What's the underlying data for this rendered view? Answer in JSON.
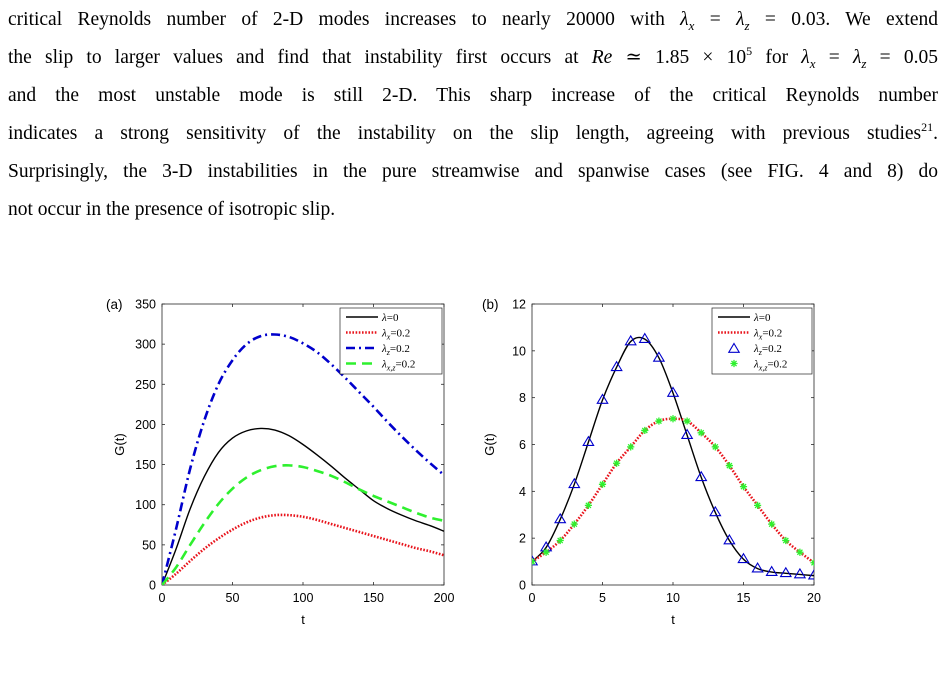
{
  "paragraph": {
    "line1": {
      "a": "critical Reynolds number of 2-D modes increases to nearly 20000 with ",
      "math": "λ",
      "sub_x": "x",
      "eq": " = ",
      "math2": "λ",
      "sub_z": "z",
      "b": " = 0.03. We extend"
    },
    "line2": {
      "a": "the slip to larger values and find that instability first occurs at ",
      "re": "Re",
      "b": " ≃ 1.85 × 10",
      "exp": "5",
      "c": " for ",
      "math": "λ",
      "sub_x": "x",
      "eq": " = ",
      "math2": "λ",
      "sub_z": "z",
      "d": " = 0.05"
    },
    "line3": "and the most unstable mode is still 2-D. This sharp increase of the critical Reynolds number",
    "line4": {
      "a": "indicates a strong sensitivity of the instability on the slip length, agreeing with previous studies",
      "ref": "21",
      "b": "."
    },
    "line5": "Surprisingly, the 3-D instabilities in the pure streamwise and spanwise cases (see FIG. 4 and 8) do",
    "line6": "not occur in the presence of isotropic slip."
  },
  "colors": {
    "black": "#000000",
    "red": "#e8141c",
    "blue": "#0000cc",
    "green": "#2ef02e"
  },
  "chart_data": [
    {
      "type": "line",
      "panel": "(a)",
      "xlabel": "t",
      "ylabel": "G(t)",
      "xlim": [
        0,
        200
      ],
      "ylim": [
        0,
        350
      ],
      "xticks": [
        0,
        50,
        100,
        150,
        200
      ],
      "yticks": [
        0,
        50,
        100,
        150,
        200,
        250,
        300,
        350
      ],
      "legend_position": "top-right",
      "series": [
        {
          "legend": "λ=0",
          "style": "solid",
          "color": "#000000",
          "x": [
            0,
            10,
            20,
            30,
            40,
            50,
            60,
            70,
            80,
            90,
            100,
            110,
            120,
            130,
            140,
            150,
            160,
            170,
            180,
            190,
            200
          ],
          "y": [
            0,
            45,
            95,
            135,
            165,
            183,
            192,
            195,
            193,
            186,
            175,
            162,
            148,
            133,
            119,
            105,
            95,
            87,
            80,
            74,
            67
          ]
        },
        {
          "legend": "λx=0.2",
          "style": "dotted",
          "color": "#e8141c",
          "x": [
            0,
            10,
            20,
            30,
            40,
            50,
            60,
            70,
            80,
            90,
            100,
            110,
            120,
            130,
            140,
            150,
            160,
            170,
            180,
            190,
            200
          ],
          "y": [
            0,
            14,
            30,
            45,
            58,
            69,
            78,
            84,
            87,
            87,
            85,
            81,
            76,
            71,
            66,
            61,
            56,
            51,
            46,
            42,
            37
          ]
        },
        {
          "legend": "λz=0.2",
          "style": "dashdot",
          "color": "#0000cc",
          "x": [
            0,
            10,
            20,
            30,
            40,
            50,
            60,
            70,
            80,
            90,
            100,
            110,
            120,
            130,
            140,
            150,
            160,
            170,
            180,
            190,
            200
          ],
          "y": [
            0,
            70,
            145,
            205,
            250,
            280,
            300,
            310,
            312,
            309,
            301,
            290,
            275,
            258,
            240,
            222,
            203,
            185,
            168,
            152,
            137
          ]
        },
        {
          "legend": "λx,z=0.2",
          "style": "dashed",
          "color": "#2ef02e",
          "x": [
            0,
            10,
            20,
            30,
            40,
            50,
            60,
            70,
            80,
            90,
            100,
            110,
            120,
            130,
            140,
            150,
            160,
            170,
            180,
            190,
            200
          ],
          "y": [
            0,
            22,
            50,
            77,
            101,
            120,
            134,
            143,
            148,
            149,
            147,
            142,
            136,
            128,
            119,
            111,
            104,
            97,
            90,
            84,
            80
          ]
        }
      ]
    },
    {
      "type": "line",
      "panel": "(b)",
      "xlabel": "t",
      "ylabel": "G(t)",
      "xlim": [
        0,
        20
      ],
      "ylim": [
        0,
        12
      ],
      "xticks": [
        0,
        5,
        10,
        15,
        20
      ],
      "yticks": [
        0,
        2,
        4,
        6,
        8,
        10,
        12
      ],
      "legend_position": "top-right",
      "series": [
        {
          "legend": "λ=0",
          "style": "solid",
          "color": "#000000",
          "x": [
            0,
            1,
            2,
            3,
            4,
            5,
            6,
            7,
            8,
            9,
            10,
            11,
            12,
            13,
            14,
            15,
            16,
            17,
            18,
            19,
            20
          ],
          "y": [
            1.0,
            1.6,
            2.8,
            4.3,
            6.1,
            7.9,
            9.3,
            10.4,
            10.5,
            9.7,
            8.2,
            6.4,
            4.6,
            3.1,
            1.9,
            1.1,
            0.7,
            0.55,
            0.5,
            0.45,
            0.4
          ]
        },
        {
          "legend": "λx=0.2",
          "style": "dotted",
          "color": "#e8141c",
          "x": [
            0,
            1,
            2,
            3,
            4,
            5,
            6,
            7,
            8,
            9,
            10,
            11,
            12,
            13,
            14,
            15,
            16,
            17,
            18,
            19,
            20
          ],
          "y": [
            1.0,
            1.4,
            1.9,
            2.6,
            3.4,
            4.3,
            5.2,
            5.9,
            6.6,
            7.0,
            7.1,
            7.0,
            6.5,
            5.9,
            5.1,
            4.2,
            3.4,
            2.6,
            1.9,
            1.4,
            0.95
          ]
        },
        {
          "legend": "λz=0.2",
          "style": "markers-triangle",
          "color": "#0000cc",
          "x": [
            0,
            1,
            2,
            3,
            4,
            5,
            6,
            7,
            8,
            9,
            10,
            11,
            12,
            13,
            14,
            15,
            16,
            17,
            18,
            19,
            20
          ],
          "y": [
            1.0,
            1.6,
            2.8,
            4.3,
            6.1,
            7.9,
            9.3,
            10.4,
            10.5,
            9.7,
            8.2,
            6.4,
            4.6,
            3.1,
            1.9,
            1.1,
            0.7,
            0.55,
            0.5,
            0.45,
            0.4
          ]
        },
        {
          "legend": "λx,z=0.2",
          "style": "markers-star",
          "color": "#2ef02e",
          "x": [
            0,
            1,
            2,
            3,
            4,
            5,
            6,
            7,
            8,
            9,
            10,
            11,
            12,
            13,
            14,
            15,
            16,
            17,
            18,
            19,
            20
          ],
          "y": [
            1.0,
            1.4,
            1.9,
            2.6,
            3.4,
            4.3,
            5.2,
            5.9,
            6.6,
            7.0,
            7.1,
            7.0,
            6.5,
            5.9,
            5.1,
            4.2,
            3.4,
            2.6,
            1.9,
            1.4,
            0.95
          ]
        }
      ]
    }
  ]
}
